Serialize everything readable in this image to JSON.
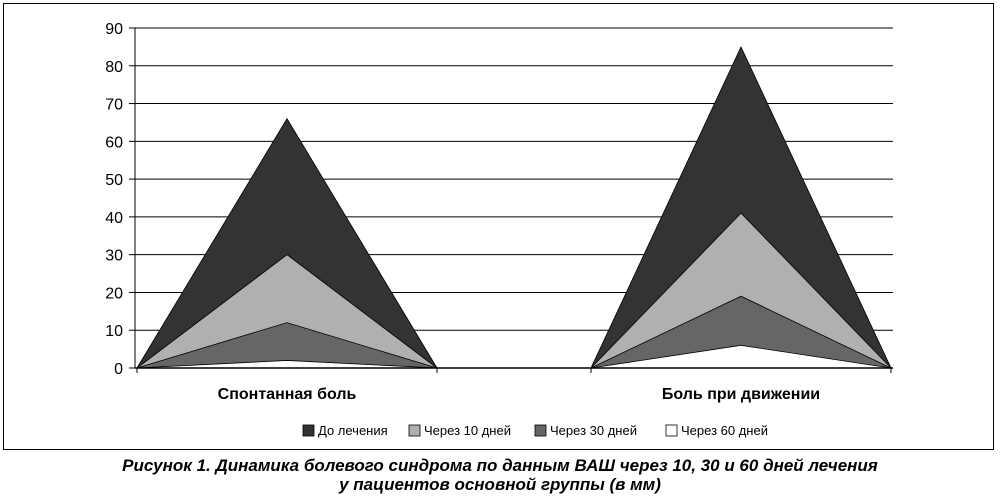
{
  "chart_data": {
    "type": "area",
    "categories": [
      "Спонтанная боль",
      "Боль при движении"
    ],
    "ylim": [
      0,
      90
    ],
    "yticks": [
      0,
      10,
      20,
      30,
      40,
      50,
      60,
      70,
      80,
      90
    ],
    "grid": true,
    "legend_position": "bottom",
    "series": [
      {
        "name": "До лечения",
        "values": [
          66,
          85
        ],
        "color": "#333333"
      },
      {
        "name": "Через 10 дней",
        "values": [
          30,
          41
        ],
        "color": "#b0b0b0"
      },
      {
        "name": "Через 30 дней",
        "values": [
          12,
          19
        ],
        "color": "#666666"
      },
      {
        "name": "Через 60 дней",
        "values": [
          2,
          6
        ],
        "color": "#ffffff"
      }
    ]
  },
  "caption": {
    "line1": "Рисунок 1. Динамика болевого синдрома по данным ВАШ через 10, 30 и 60 дней лечения",
    "line2": "у пациентов основной группы (в мм)"
  }
}
